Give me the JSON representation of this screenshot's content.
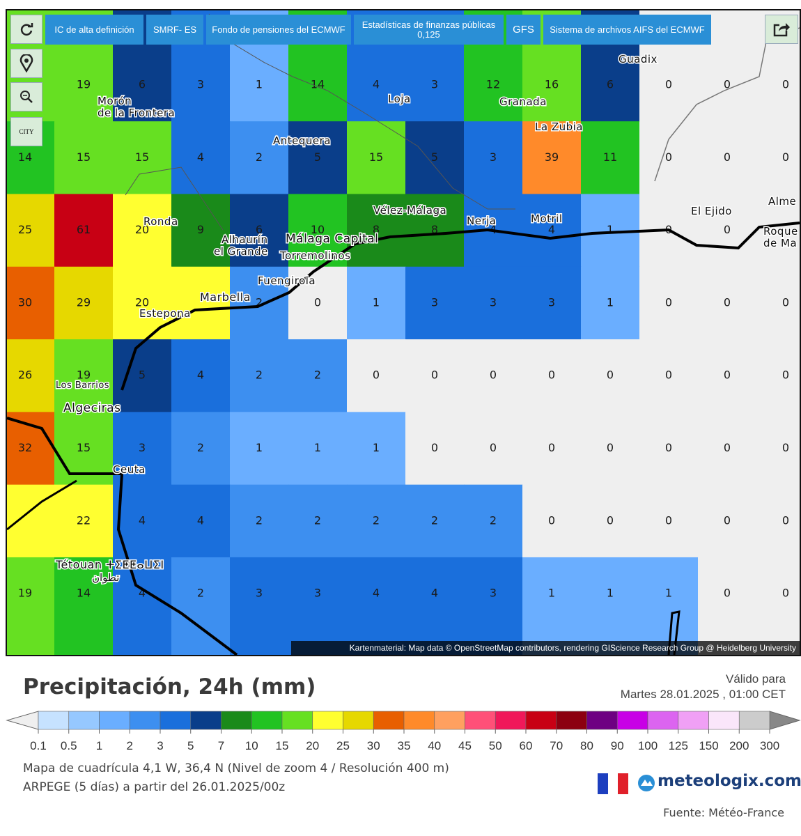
{
  "toolbar": [
    "IC de alta definición",
    "SMRF- ES",
    "Fondo de pensiones del ECMWF",
    "Estadísticas de finanzas públicas 0,125",
    "GFS",
    "Sistema de archivos AIFS del ECMWF"
  ],
  "city_button": "CITY",
  "grid_values": [
    [
      null,
      19,
      6,
      3,
      1,
      14,
      4,
      3,
      12,
      16,
      6,
      0,
      0,
      0
    ],
    [
      14,
      15,
      15,
      4,
      2,
      5,
      15,
      5,
      3,
      39,
      11,
      0,
      0,
      0
    ],
    [
      25,
      61,
      20,
      9,
      6,
      10,
      8,
      8,
      4,
      4,
      1,
      0,
      0,
      null
    ],
    [
      30,
      29,
      20,
      null,
      2,
      0,
      1,
      3,
      3,
      3,
      1,
      0,
      0,
      0
    ],
    [
      26,
      19,
      5,
      4,
      2,
      2,
      0,
      0,
      0,
      0,
      0,
      0,
      0,
      0
    ],
    [
      32,
      15,
      3,
      2,
      1,
      1,
      1,
      0,
      0,
      0,
      0,
      0,
      0,
      0
    ],
    [
      null,
      22,
      4,
      4,
      2,
      2,
      2,
      2,
      2,
      0,
      0,
      0,
      0,
      0
    ],
    [
      19,
      14,
      4,
      2,
      3,
      3,
      4,
      4,
      3,
      1,
      1,
      1,
      0,
      0
    ]
  ],
  "places": [
    "Guadix",
    "Morón",
    "de la Frontera",
    "Loja",
    "Granada",
    "La Zubia",
    "Antequera",
    "Vélez-Málaga",
    "Nerja",
    "Motril",
    "El Ejido",
    "Alme",
    "Roque",
    "de Ma",
    "Ronda",
    "Alhaurín",
    "el Grande",
    "Málaga Capital",
    "Torremolinos",
    "Fuengirola",
    "Marbella",
    "Estepona",
    "Los Barrios",
    "Algeciras",
    "Ceuta",
    "Tétouan ⵜⵉⵟⵟⴰⵡⵉⵏ",
    "تطوان"
  ],
  "attribution": "Kartenmaterial: Map data © OpenStreetMap contributors, rendering GIScience Research Group @ Heidelberg University",
  "title": "Precipitación, 24h (mm)",
  "valid_label": "Válido para",
  "valid_time": "Martes 28.01.2025 , 01:00 CET",
  "legend": {
    "ticks": [
      0.1,
      0.5,
      1,
      2,
      3,
      5,
      7,
      10,
      15,
      20,
      25,
      30,
      35,
      40,
      45,
      50,
      60,
      70,
      80,
      90,
      100,
      125,
      150,
      200,
      300
    ],
    "colors": [
      "#c6e2ff",
      "#96c8ff",
      "#6aaeff",
      "#3d8ff0",
      "#1a6fdc",
      "#0a3e8a",
      "#1a8a1a",
      "#22c322",
      "#66e022",
      "#ffff30",
      "#e6d800",
      "#e85f00",
      "#ff8a2a",
      "#ffa060",
      "#ff5078",
      "#f0185a",
      "#c80014",
      "#8c0010",
      "#6e0082",
      "#c800e6",
      "#dc64f0",
      "#f0a0f5",
      "#fae6fa",
      "#cccccc"
    ],
    "under_color": "#efefef",
    "over_color": "#888888"
  },
  "grid_info": "Mapa de cuadrícula 4,1 W, 36,4 N (Nivel de zoom 4 / Resolución 400 m)",
  "model_info": "ARPEGE (5 días) a partir del 26.01.2025/00z",
  "brand": "meteologix.com",
  "source": "Fuente: Météo-France"
}
